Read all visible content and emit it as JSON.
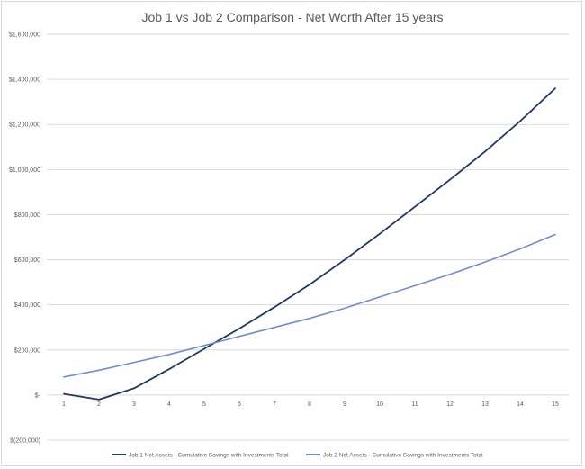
{
  "chart_data": {
    "type": "line",
    "title": "Job 1 vs Job 2 Comparison - Net Worth After 15 years",
    "xlabel": "",
    "ylabel": "",
    "categories": [
      "1",
      "2",
      "3",
      "4",
      "5",
      "6",
      "7",
      "8",
      "9",
      "10",
      "11",
      "12",
      "13",
      "14",
      "15"
    ],
    "y_tick_labels": [
      "$(200,000)",
      "$-",
      "$200,000",
      "$400,000",
      "$600,000",
      "$800,000",
      "$1,000,000",
      "$1,200,000",
      "$1,400,000",
      "$1,600,000"
    ],
    "y_ticks": [
      -200000,
      0,
      200000,
      400000,
      600000,
      800000,
      1000000,
      1200000,
      1400000,
      1600000
    ],
    "ylim": [
      -200000,
      1600000
    ],
    "grid": true,
    "legend_position": "bottom",
    "series": [
      {
        "name": "Job 1 Net Assets - Cumulative Savings with Investments Total",
        "color": "#1f3864",
        "values": [
          5000,
          -20000,
          30000,
          115000,
          205000,
          295000,
          390000,
          490000,
          600000,
          715000,
          835000,
          955000,
          1080000,
          1215000,
          1360000
        ]
      },
      {
        "name": "Job 2 Net Assets - Cumulative Savings with Investments Total",
        "color": "#6e8fcf",
        "values": [
          80000,
          110000,
          145000,
          180000,
          220000,
          260000,
          300000,
          340000,
          385000,
          435000,
          485000,
          535000,
          590000,
          648000,
          712000
        ]
      }
    ]
  }
}
